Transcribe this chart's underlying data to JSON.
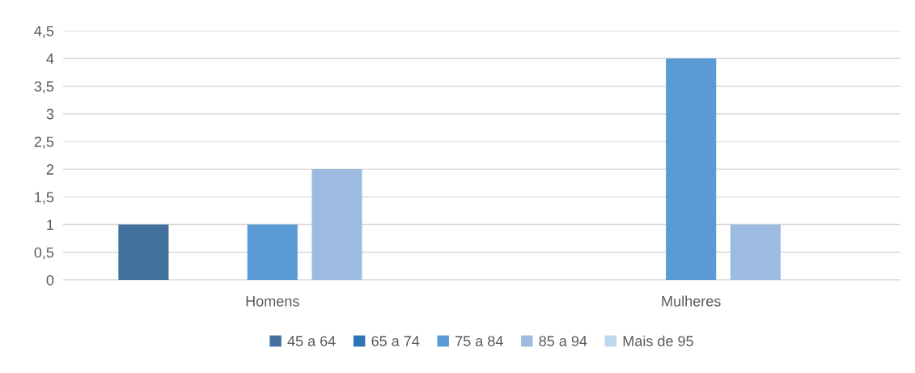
{
  "chart_data": {
    "type": "bar",
    "categories": [
      "Homens",
      "Mulheres"
    ],
    "series": [
      {
        "name": "45 a 64",
        "color": "#41719c",
        "values": [
          1,
          0
        ]
      },
      {
        "name": "65 a 74",
        "color": "#2e75b6",
        "values": [
          0,
          0
        ]
      },
      {
        "name": "75 a 84",
        "color": "#5b9bd5",
        "values": [
          1,
          4
        ]
      },
      {
        "name": "85 a 94",
        "color": "#9dbbe1",
        "values": [
          2,
          1
        ]
      },
      {
        "name": "Mais de 95",
        "color": "#bdd7ee",
        "values": [
          0,
          0
        ]
      }
    ],
    "ylim": [
      0,
      4.5
    ],
    "yticks": [
      0,
      {
        "value": 0.5,
        "label": "0,5"
      },
      1,
      {
        "value": 1.5,
        "label": "1,5"
      },
      2,
      {
        "value": 2.5,
        "label": "2,5"
      },
      3,
      {
        "value": 3.5,
        "label": "3,5"
      },
      4,
      {
        "value": 4.5,
        "label": "4,5"
      }
    ],
    "grid": "y",
    "legend": "bottom"
  }
}
